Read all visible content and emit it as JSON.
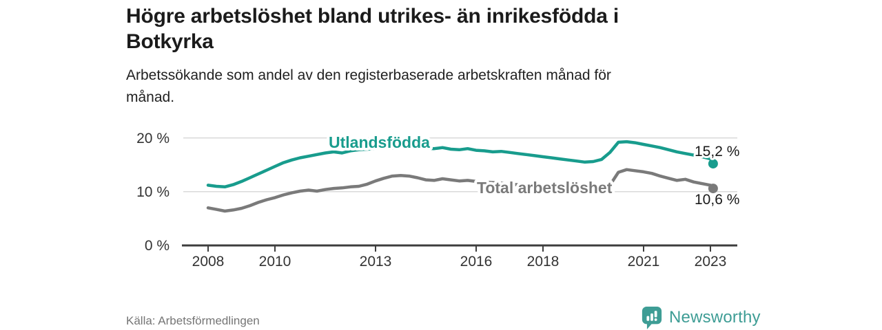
{
  "header": {
    "title_lines": [
      "Högre arbetslöshet bland utrikes- än inrikesfödda i",
      "Botkyrka"
    ],
    "subtitle_lines": [
      "Arbetssökande som andel av den registerbaserade arbetskraften månad för",
      "månad."
    ]
  },
  "chart_data": {
    "type": "line",
    "title": "Högre arbetslöshet bland utrikes- än inrikesfödda i Botkyrka",
    "subtitle": "Arbetssökande som andel av den registerbaserade arbetskraften månad för månad.",
    "unit": "%",
    "grid": "horizontal-only",
    "legend_position": "inline-labels-on-lines",
    "x_start": 2008,
    "x_step": 0.25,
    "x_end": 2023.08,
    "xlim": [
      2007.3,
      2023.8
    ],
    "ylim": [
      0,
      21.5
    ],
    "x_tick_labels": [
      "2008",
      "2010",
      "2013",
      "2016",
      "2018",
      "2021",
      "2023"
    ],
    "x_ticks": [
      2008,
      2010,
      2013,
      2016,
      2018,
      2021,
      2023
    ],
    "y_ticks": [
      0,
      10,
      20
    ],
    "y_tick_labels": [
      "0 %",
      "10 %",
      "20 %"
    ],
    "series": [
      {
        "name": "Utlandsfödda",
        "color": "#189c8d",
        "end_value": 15.2,
        "end_label": "15,2 %",
        "values": [
          11.2,
          11.0,
          10.9,
          11.3,
          11.9,
          12.6,
          13.3,
          14.0,
          14.7,
          15.4,
          15.9,
          16.3,
          16.6,
          16.9,
          17.2,
          17.4,
          17.2,
          17.6,
          17.8,
          17.9,
          18.0,
          18.2,
          18.1,
          18.3,
          18.4,
          18.3,
          18.1,
          18.0,
          18.2,
          17.9,
          17.8,
          18.0,
          17.7,
          17.6,
          17.4,
          17.5,
          17.3,
          17.1,
          16.9,
          16.7,
          16.5,
          16.3,
          16.1,
          15.9,
          15.7,
          15.5,
          15.6,
          16.0,
          17.3,
          19.2,
          19.3,
          19.1,
          18.8,
          18.5,
          18.2,
          17.8,
          17.4,
          17.1,
          16.8,
          16.5,
          16.1,
          15.2
        ]
      },
      {
        "name": "Total arbetslöshet",
        "color": "#7a7a7a",
        "end_value": 10.6,
        "end_label": "10,6 %",
        "values": [
          7.0,
          6.7,
          6.4,
          6.6,
          6.9,
          7.4,
          8.0,
          8.5,
          8.9,
          9.4,
          9.8,
          10.1,
          10.3,
          10.1,
          10.4,
          10.6,
          10.7,
          10.9,
          11.0,
          11.4,
          12.0,
          12.5,
          12.9,
          13.0,
          12.9,
          12.6,
          12.2,
          12.1,
          12.4,
          12.2,
          12.0,
          12.1,
          11.9,
          11.8,
          11.7,
          11.6,
          11.4,
          11.3,
          11.1,
          11.0,
          10.9,
          10.7,
          10.6,
          10.5,
          10.4,
          10.3,
          10.3,
          10.5,
          11.2,
          13.6,
          14.1,
          13.9,
          13.7,
          13.4,
          12.9,
          12.5,
          12.1,
          12.3,
          11.8,
          11.5,
          11.2,
          10.6
        ]
      }
    ]
  },
  "footer": {
    "source": "Källa: Arbetsförmedlingen",
    "brand": "Newsworthy",
    "brand_color": "#3e9d95"
  }
}
